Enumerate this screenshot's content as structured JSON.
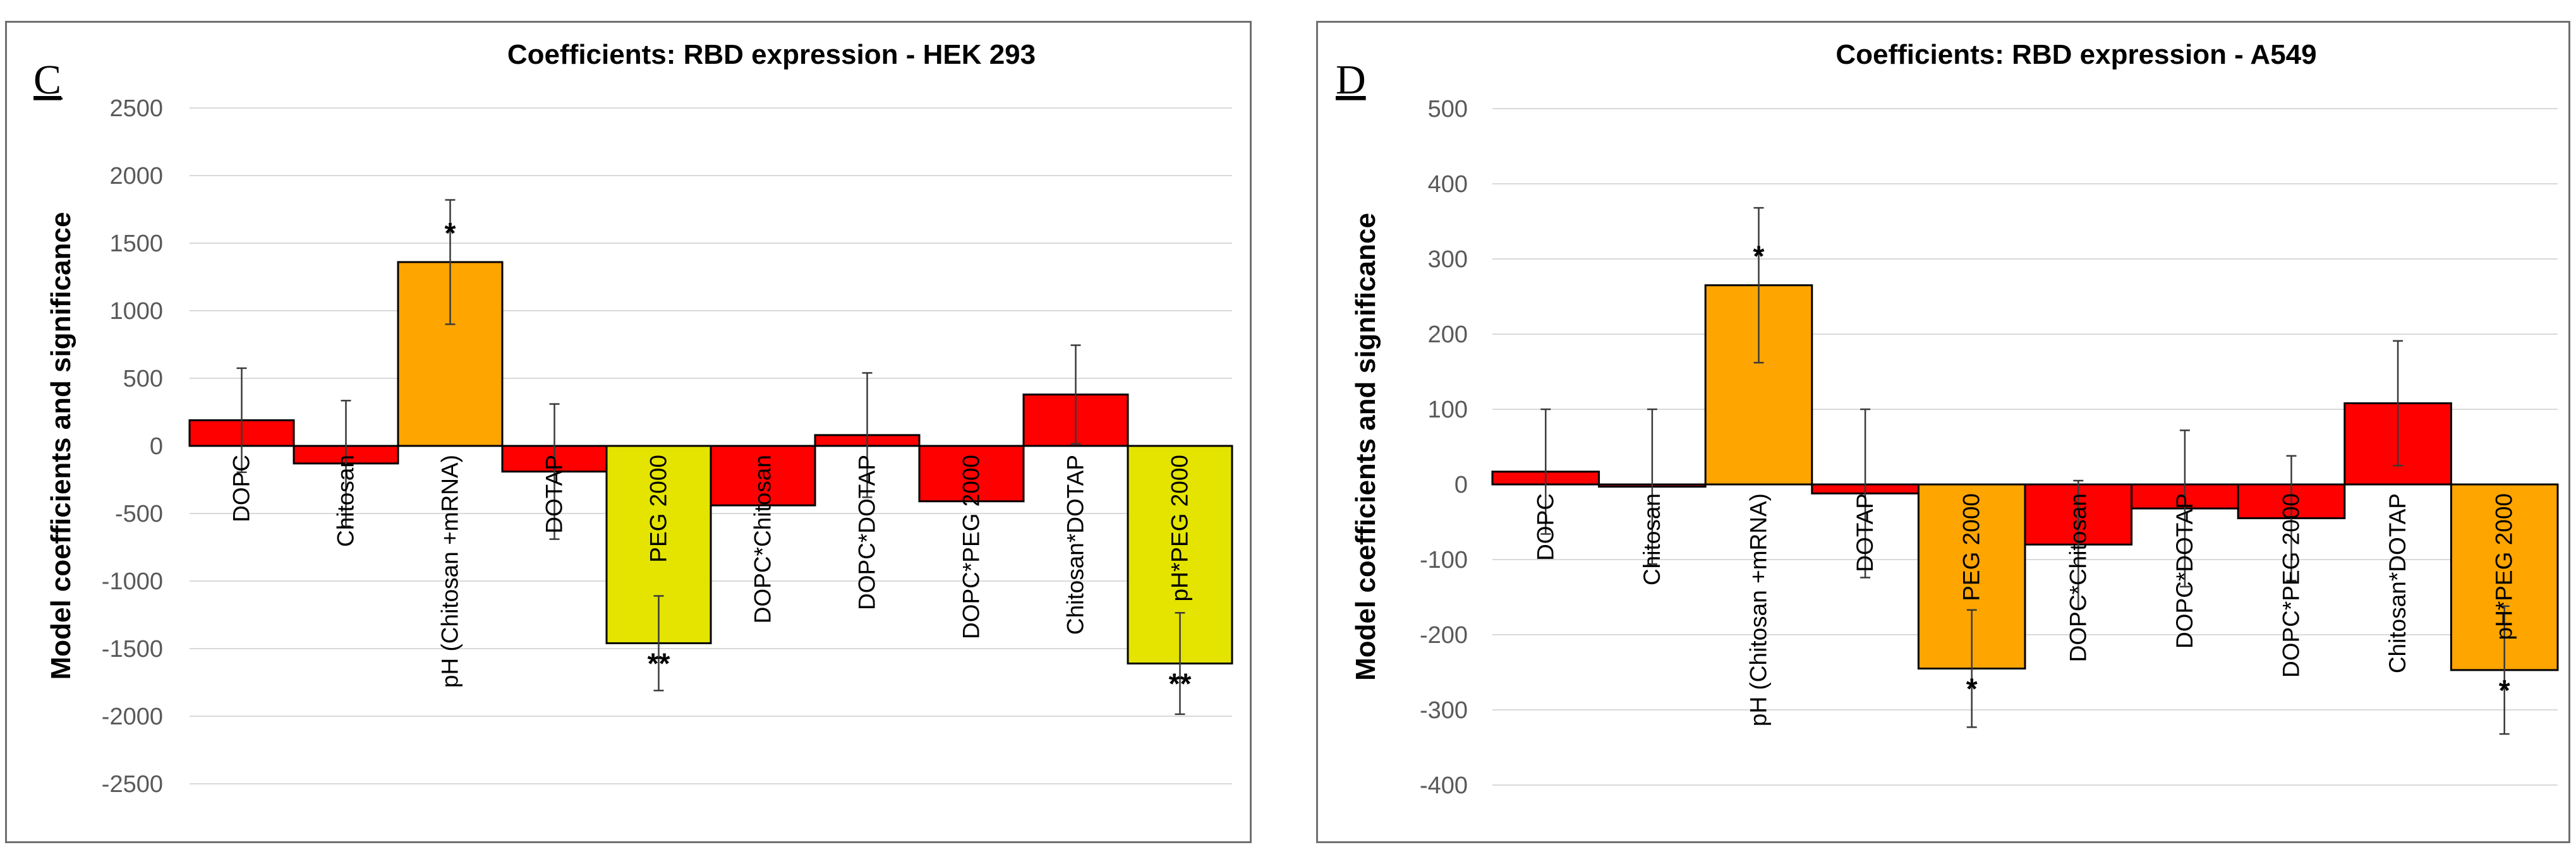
{
  "chart_data": [
    {
      "type": "bar",
      "panel_label": "C",
      "title": "Coefficients:  RBD expression - HEK 293",
      "xlabel": "",
      "ylabel": "Model coefficients and significance",
      "ylim": [
        -2500,
        2500
      ],
      "yticks": [
        2500,
        2000,
        1500,
        1000,
        500,
        0,
        -500,
        -1000,
        -1500,
        -2000,
        -2500
      ],
      "grid": true,
      "categories": [
        "DOPC",
        "Chitosan",
        "pH (Chitosan +mRNA)",
        "DOTAP",
        "PEG 2000",
        "DOPC*Chitosan",
        "DOPC*DOTAP",
        "DOPC*PEG 2000",
        "Chitosan*DOTAP",
        "pH*PEG 2000"
      ],
      "values": [
        190,
        -130,
        1360,
        -190,
        -1460,
        -440,
        80,
        -410,
        380,
        -1610
      ],
      "errors": [
        385,
        465,
        460,
        500,
        350,
        0,
        460,
        0,
        365,
        375
      ],
      "colors": [
        "#ff0000",
        "#ff0000",
        "#ffa500",
        "#ff0000",
        "#e4e400",
        "#ff0000",
        "#ff0000",
        "#ff0000",
        "#ff0000",
        "#e4e400"
      ],
      "significance": [
        "",
        "",
        "*",
        "",
        "**",
        "",
        "",
        "",
        "",
        "**"
      ]
    },
    {
      "type": "bar",
      "panel_label": "D",
      "title": "Coefficients:  RBD expression - A549",
      "xlabel": "",
      "ylabel": "Model coefficients and significance",
      "ylim": [
        -400,
        500
      ],
      "yticks": [
        500,
        400,
        300,
        200,
        100,
        0,
        -100,
        -200,
        -300,
        -400
      ],
      "grid": true,
      "categories": [
        "DOPC",
        "Chitosan",
        "pH (Chitosan +mRNA)",
        "DOTAP",
        "PEG 2000",
        "DOPC*Chitosan",
        "DOPC*DOTAP",
        "DOPC*PEG 2000",
        "Chitosan*DOTAP",
        "pH*PEG 2000"
      ],
      "values": [
        17,
        -3,
        265,
        -12,
        -245,
        -80,
        -32,
        -45,
        108,
        -247
      ],
      "errors": [
        83,
        103,
        103,
        112,
        78,
        85,
        104,
        83,
        83,
        85
      ],
      "colors": [
        "#ff0000",
        "#ff0000",
        "#ffa500",
        "#ff0000",
        "#ffa500",
        "#ff0000",
        "#ff0000",
        "#ff0000",
        "#ff0000",
        "#ffa500"
      ],
      "significance": [
        "",
        "",
        "*",
        "",
        "*",
        "",
        "",
        "",
        "",
        "*"
      ]
    }
  ]
}
